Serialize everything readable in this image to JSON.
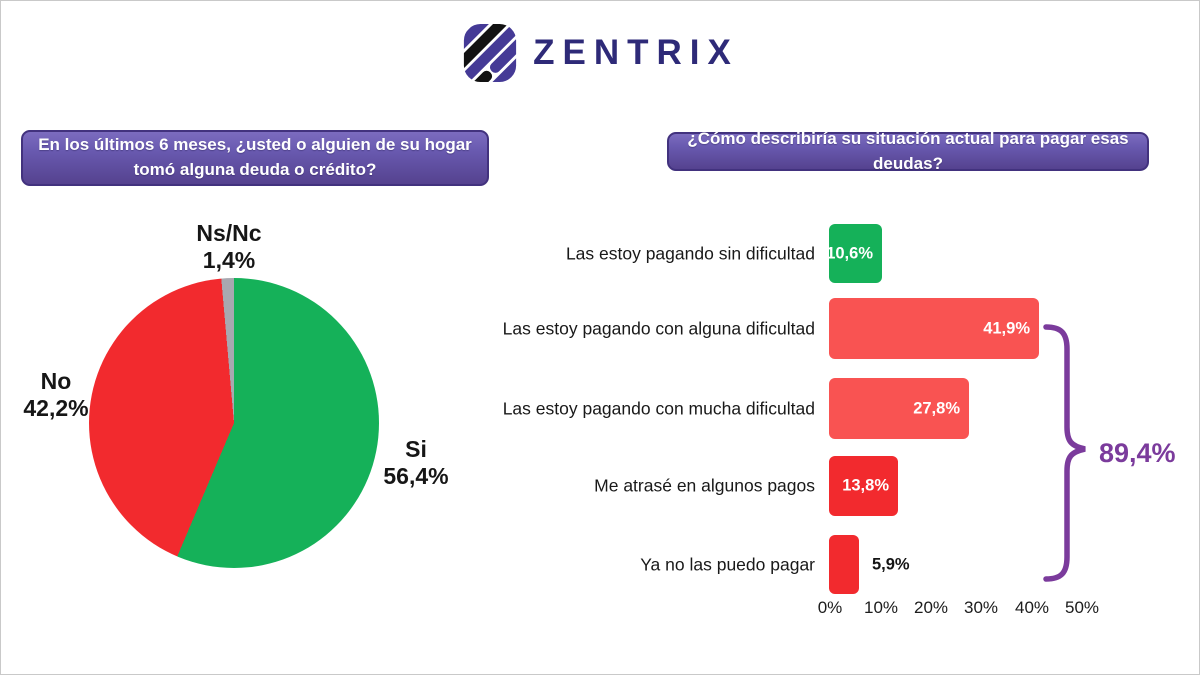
{
  "logo": {
    "text": "ZENTRIX",
    "icon": "zentrix-diagonal-stripes-mark",
    "brand_color": "#2e2a78",
    "icon_colors": [
      "#453a96",
      "#121212"
    ]
  },
  "colors": {
    "green": "#15b159",
    "salmon_red": "#f95352",
    "bright_red": "#f22a2e",
    "gray": "#a8a8b0",
    "accent_purple": "#7b3b9c",
    "banner_purple_top": "#7c6cbf",
    "banner_purple_bottom": "#55428f"
  },
  "pie_section": {
    "question": "En los últimos 6 meses, ¿usted o alguien de su hogar tomó alguna deuda o crédito?",
    "labels": {
      "nsnc": {
        "name": "Ns/Nc",
        "value": "1,4%"
      },
      "no": {
        "name": "No",
        "value": "42,2%"
      },
      "si": {
        "name": "Si",
        "value": "56,4%"
      }
    }
  },
  "bar_section": {
    "question": "¿Cómo describiría su situación actual para pagar esas deudas?",
    "x_ticks": [
      "0%",
      "10%",
      "20%",
      "30%",
      "40%",
      "50%"
    ],
    "brace_total": "89,4%"
  },
  "chart_data": [
    {
      "type": "pie",
      "title": "En los últimos 6 meses, ¿usted o alguien de su hogar tomó alguna deuda o crédito?",
      "start_angle_deg": 0,
      "direction": "clockwise",
      "slices": [
        {
          "label": "Si",
          "value": 56.4,
          "display": "56,4%",
          "color": "#15b159"
        },
        {
          "label": "No",
          "value": 42.2,
          "display": "42,2%",
          "color": "#f22a2e"
        },
        {
          "label": "Ns/Nc",
          "value": 1.4,
          "display": "1,4%",
          "color": "#a8a8b0"
        }
      ]
    },
    {
      "type": "bar",
      "orientation": "horizontal",
      "title": "¿Cómo describiría su situación actual para pagar esas deudas?",
      "xlim": [
        0,
        50
      ],
      "x_ticks": [
        "0%",
        "10%",
        "20%",
        "30%",
        "40%",
        "50%"
      ],
      "grid": false,
      "legend": false,
      "bars": [
        {
          "label": "Las estoy pagando sin dificultad",
          "value": 10.6,
          "display": "10,6%",
          "color": "#15b159",
          "value_outside": false
        },
        {
          "label": "Las estoy pagando con alguna dificultad",
          "value": 41.9,
          "display": "41,9%",
          "color": "#f95352",
          "value_outside": false
        },
        {
          "label": "Las estoy pagando con mucha dificultad",
          "value": 27.8,
          "display": "27,8%",
          "color": "#f95352",
          "value_outside": false
        },
        {
          "label": "Me atrasé en algunos pagos",
          "value": 13.8,
          "display": "13,8%",
          "color": "#f22a2e",
          "value_outside": false
        },
        {
          "label": "Ya no las puedo pagar",
          "value": 5.9,
          "display": "5,9%",
          "color": "#f22a2e",
          "value_outside": true
        }
      ],
      "annotation": {
        "label": "89,4%",
        "color": "#7b3b9c",
        "covers": [
          "Las estoy pagando con alguna dificultad",
          "Las estoy pagando con mucha dificultad",
          "Me atrasé en algunos pagos",
          "Ya no las puedo pagar"
        ]
      }
    }
  ]
}
